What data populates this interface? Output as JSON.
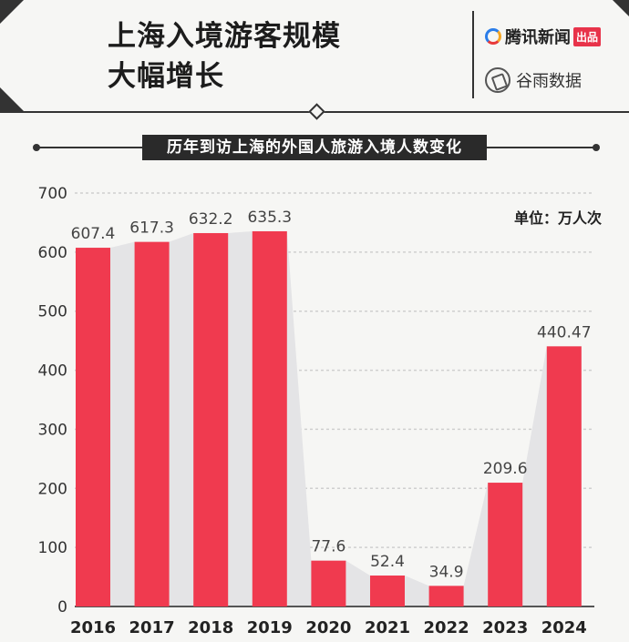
{
  "header": {
    "title_line1": "上海入境游客规模",
    "title_line2": "大幅增长",
    "brand1_name": "腾讯新闻",
    "brand1_badge": "出品",
    "brand2_name": "谷雨数据"
  },
  "chart_data": {
    "type": "bar",
    "title": "历年到访上海的外国人旅游入境人数变化",
    "unit": "单位：万人次",
    "categories": [
      "2016",
      "2017",
      "2018",
      "2019",
      "2020",
      "2021",
      "2022",
      "2023",
      "2024"
    ],
    "values": [
      607.4,
      617.3,
      632.2,
      635.3,
      77.6,
      52.4,
      34.9,
      209.6,
      440.47
    ],
    "value_labels": [
      "607.4",
      "617.3",
      "632.2",
      "635.3",
      "77.6",
      "52.4",
      "34.9",
      "209.6",
      "440.47"
    ],
    "ylim": [
      0,
      700
    ],
    "yticks": [
      0,
      100,
      200,
      300,
      400,
      500,
      600,
      700
    ],
    "grid": true,
    "bar_color": "#f03a4f",
    "area_color": "#e4e4e6",
    "grid_color": "#cfcfcf"
  }
}
